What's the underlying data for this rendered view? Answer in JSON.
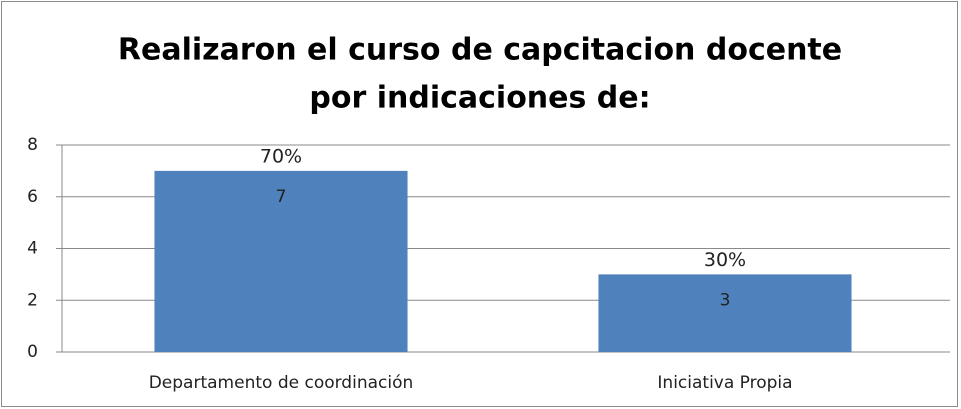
{
  "chart_data": {
    "type": "bar",
    "title": [
      "Realizaron el curso de capcitacion docente",
      "por indicaciones de:"
    ],
    "categories": [
      "Departamento de coordinación",
      "Iniciativa Propia"
    ],
    "values": [
      7,
      3
    ],
    "annotations": [
      "70%",
      "30%"
    ],
    "color": "#4f81bd",
    "ylim": [
      0,
      8
    ],
    "yticks": [
      0,
      2,
      4,
      6,
      8
    ],
    "grid": true
  }
}
